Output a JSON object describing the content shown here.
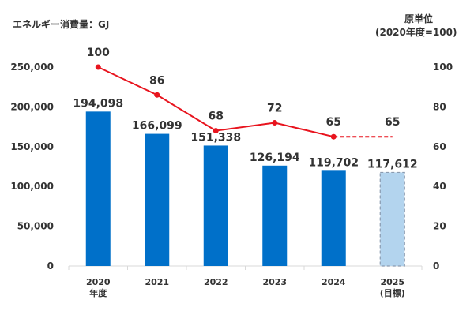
{
  "chart_data": {
    "type": "bar",
    "left_axis_title": "エネルギー消費量：GJ",
    "right_axis_title_line1": "原単位",
    "right_axis_title_line2": "(2020年度=100)",
    "categories": [
      [
        "2020",
        "年度"
      ],
      [
        "2021"
      ],
      [
        "2022"
      ],
      [
        "2023"
      ],
      [
        "2024"
      ],
      [
        "2025",
        "(目標)"
      ]
    ],
    "bar_values": [
      194098,
      166099,
      151338,
      126194,
      119702,
      117612
    ],
    "bar_labels": [
      "194,098",
      "166,099",
      "151,338",
      "126,194",
      "119,702",
      "117,612"
    ],
    "bar_target_index": 5,
    "line_values": [
      100,
      86,
      68,
      72,
      65,
      65
    ],
    "line_dashed_from_index": 4,
    "ylim_left": [
      0,
      250000
    ],
    "yticks_left": [
      "0",
      "50,000",
      "100,000",
      "150,000",
      "200,000",
      "250,000"
    ],
    "ylim_right": [
      0,
      100
    ],
    "yticks_right": [
      "0",
      "20",
      "40",
      "60",
      "80",
      "100"
    ],
    "grid": false,
    "colors": {
      "bar": "#0070c9",
      "bar_target": "#b3d4ee",
      "bar_target_border": "#8a9bb0",
      "line": "#e8141e"
    }
  }
}
